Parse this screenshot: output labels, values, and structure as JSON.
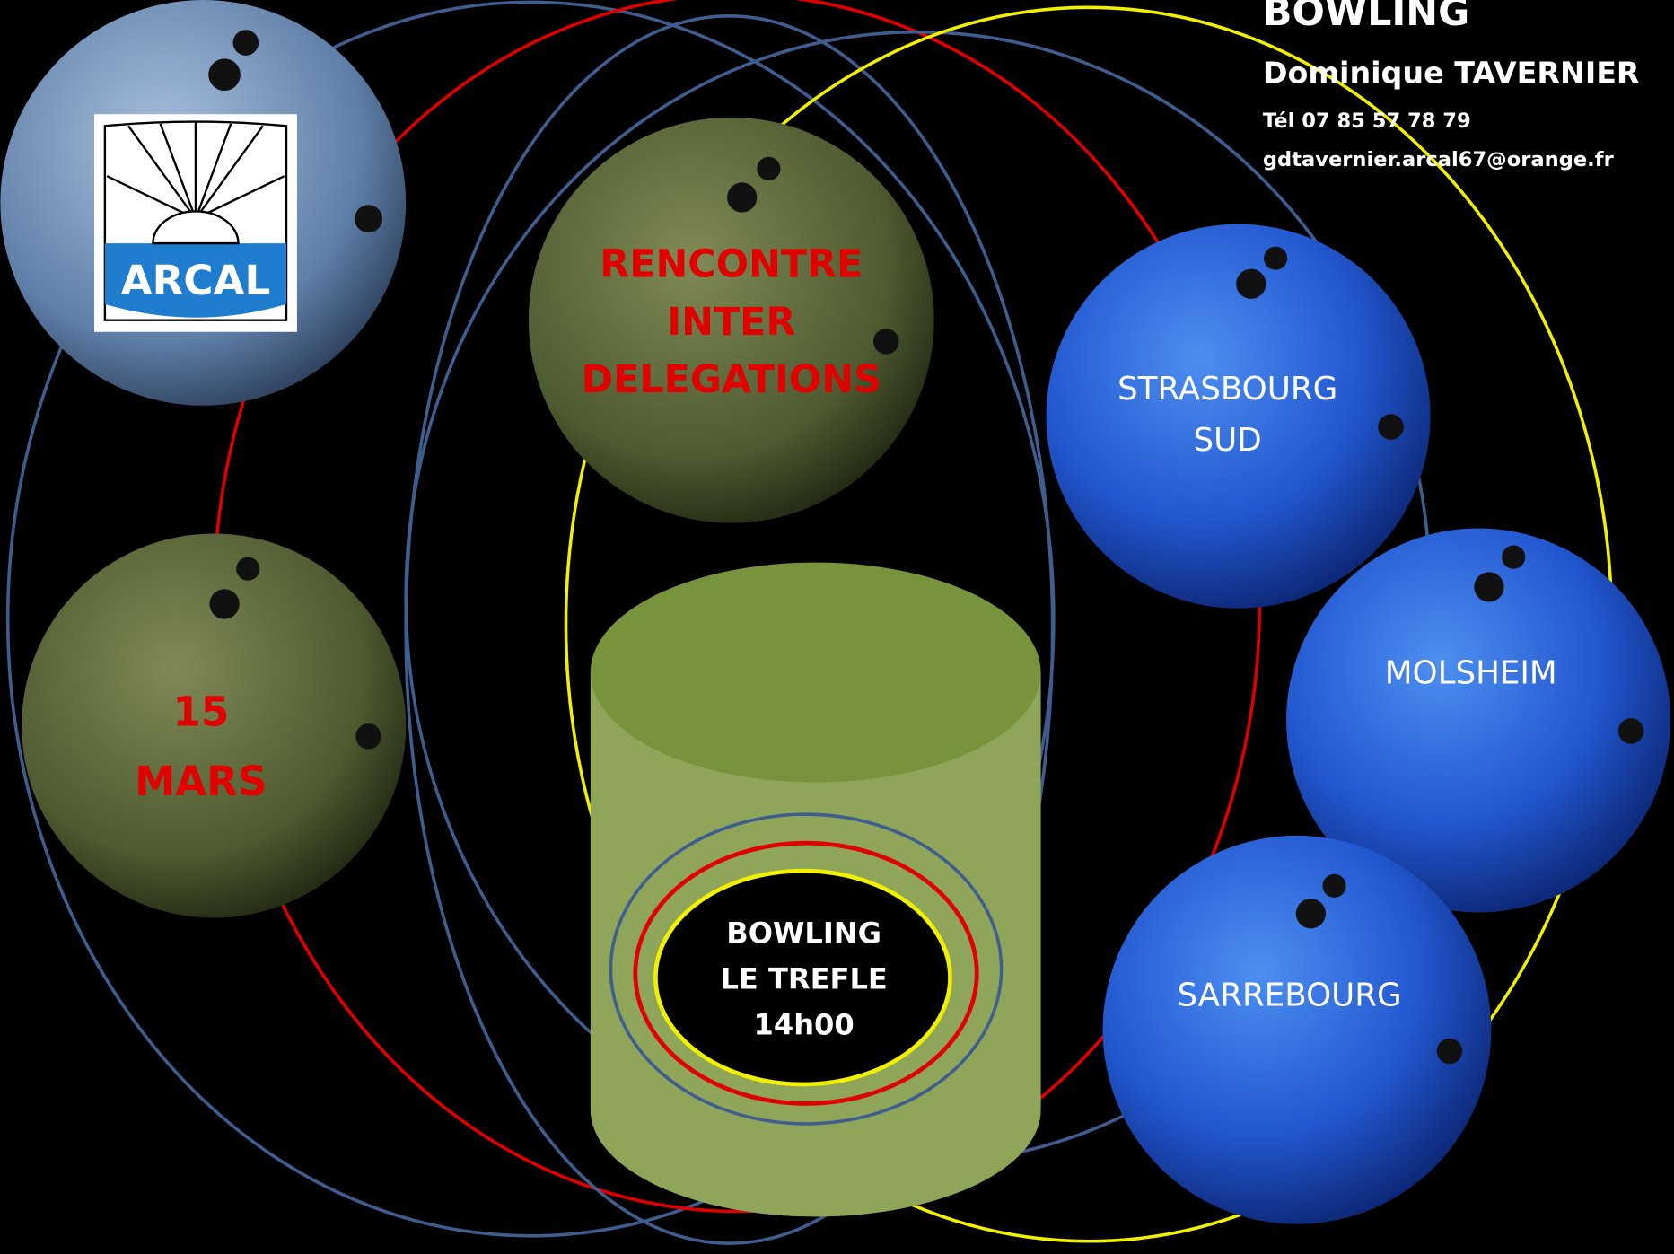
{
  "header": {
    "title": "BOWLING",
    "name": "Dominique TAVERNIER",
    "phone": "Tél 07 85 57 78 79",
    "email": "gdtavernier.arcal67@orange.fr"
  },
  "logo": {
    "label": "ARCAL"
  },
  "event": {
    "lines": [
      "RENCONTRE",
      "INTER",
      "DELEGATIONS"
    ]
  },
  "date": {
    "lines": [
      "15",
      "MARS"
    ]
  },
  "teams": [
    {
      "lines": [
        "STRASBOURG",
        "SUD"
      ]
    },
    {
      "lines": [
        "MOLSHEIM"
      ]
    },
    {
      "lines": [
        "SARREBOURG"
      ]
    }
  ],
  "venue": {
    "lines": [
      "BOWLING",
      "LE TREFLE",
      "14h00"
    ]
  }
}
